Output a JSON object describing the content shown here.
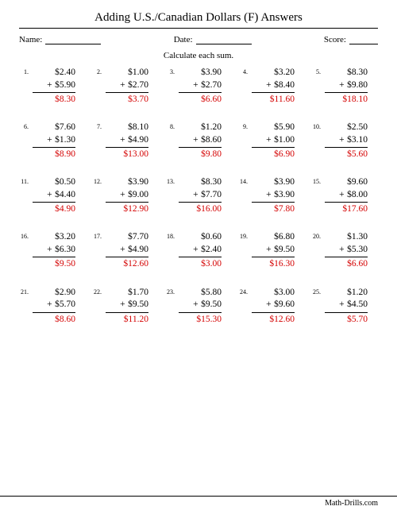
{
  "title": "Adding U.S./Canadian Dollars (F) Answers",
  "meta": {
    "name_label": "Name:",
    "date_label": "Date:",
    "score_label": "Score:",
    "name_line_width": 70,
    "date_line_width": 70,
    "score_line_width": 36
  },
  "instruction": "Calculate each sum.",
  "ui": {
    "plus": "+"
  },
  "style": {
    "answer_color": "#d40000"
  },
  "problems": [
    {
      "n": "1.",
      "a": "$2.40",
      "b": "$5.90",
      "ans": "$8.30"
    },
    {
      "n": "2.",
      "a": "$1.00",
      "b": "$2.70",
      "ans": "$3.70"
    },
    {
      "n": "3.",
      "a": "$3.90",
      "b": "$2.70",
      "ans": "$6.60"
    },
    {
      "n": "4.",
      "a": "$3.20",
      "b": "$8.40",
      "ans": "$11.60"
    },
    {
      "n": "5.",
      "a": "$8.30",
      "b": "$9.80",
      "ans": "$18.10"
    },
    {
      "n": "6.",
      "a": "$7.60",
      "b": "$1.30",
      "ans": "$8.90"
    },
    {
      "n": "7.",
      "a": "$8.10",
      "b": "$4.90",
      "ans": "$13.00"
    },
    {
      "n": "8.",
      "a": "$1.20",
      "b": "$8.60",
      "ans": "$9.80"
    },
    {
      "n": "9.",
      "a": "$5.90",
      "b": "$1.00",
      "ans": "$6.90"
    },
    {
      "n": "10.",
      "a": "$2.50",
      "b": "$3.10",
      "ans": "$5.60"
    },
    {
      "n": "11.",
      "a": "$0.50",
      "b": "$4.40",
      "ans": "$4.90"
    },
    {
      "n": "12.",
      "a": "$3.90",
      "b": "$9.00",
      "ans": "$12.90"
    },
    {
      "n": "13.",
      "a": "$8.30",
      "b": "$7.70",
      "ans": "$16.00"
    },
    {
      "n": "14.",
      "a": "$3.90",
      "b": "$3.90",
      "ans": "$7.80"
    },
    {
      "n": "15.",
      "a": "$9.60",
      "b": "$8.00",
      "ans": "$17.60"
    },
    {
      "n": "16.",
      "a": "$3.20",
      "b": "$6.30",
      "ans": "$9.50"
    },
    {
      "n": "17.",
      "a": "$7.70",
      "b": "$4.90",
      "ans": "$12.60"
    },
    {
      "n": "18.",
      "a": "$0.60",
      "b": "$2.40",
      "ans": "$3.00"
    },
    {
      "n": "19.",
      "a": "$6.80",
      "b": "$9.50",
      "ans": "$16.30"
    },
    {
      "n": "20.",
      "a": "$1.30",
      "b": "$5.30",
      "ans": "$6.60"
    },
    {
      "n": "21.",
      "a": "$2.90",
      "b": "$5.70",
      "ans": "$8.60"
    },
    {
      "n": "22.",
      "a": "$1.70",
      "b": "$9.50",
      "ans": "$11.20"
    },
    {
      "n": "23.",
      "a": "$5.80",
      "b": "$9.50",
      "ans": "$15.30"
    },
    {
      "n": "24.",
      "a": "$3.00",
      "b": "$9.60",
      "ans": "$12.60"
    },
    {
      "n": "25.",
      "a": "$1.20",
      "b": "$4.50",
      "ans": "$5.70"
    }
  ],
  "footer": "Math-Drills.com"
}
